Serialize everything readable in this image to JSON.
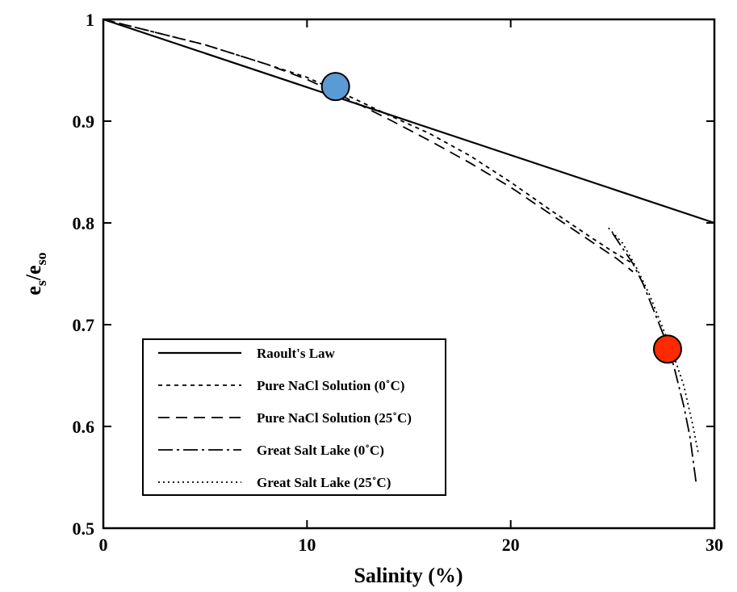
{
  "chart_data": {
    "type": "line",
    "title": "",
    "xlabel": "Salinity (%)",
    "ylabel": {
      "base": "e",
      "sub1": "s",
      "sep": "/e",
      "sub2": "so"
    },
    "xlim": [
      0,
      30
    ],
    "ylim": [
      0.5,
      1.0
    ],
    "xticks": [
      0,
      10,
      20,
      30
    ],
    "xtick_labels": [
      "0",
      "10",
      "20",
      "30"
    ],
    "yticks": [
      0.5,
      0.6,
      0.7,
      0.8,
      0.9,
      1.0
    ],
    "ytick_labels": [
      "0.5",
      "0.6",
      "0.7",
      "0.8",
      "0.9",
      "1"
    ],
    "grid": false,
    "legend_position": "bottom-left",
    "series": [
      {
        "name": "Raoult's Law",
        "dash": "solid",
        "points": [
          [
            0,
            1.0
          ],
          [
            30,
            0.8
          ]
        ]
      },
      {
        "name": "Pure NaCl Solution (0˚C)",
        "dash": "short-dash",
        "points": [
          [
            0,
            1.0
          ],
          [
            5,
            0.975
          ],
          [
            8,
            0.956
          ],
          [
            10,
            0.943
          ],
          [
            12,
            0.925
          ],
          [
            14,
            0.906
          ],
          [
            16,
            0.888
          ],
          [
            18,
            0.866
          ],
          [
            20,
            0.84
          ],
          [
            22,
            0.812
          ],
          [
            24,
            0.785
          ],
          [
            25,
            0.772
          ],
          [
            26,
            0.76
          ]
        ]
      },
      {
        "name": "Pure NaCl Solution (25˚C)",
        "dash": "long-dash",
        "points": [
          [
            0,
            1.0
          ],
          [
            5,
            0.975
          ],
          [
            8,
            0.956
          ],
          [
            10,
            0.941
          ],
          [
            12,
            0.922
          ],
          [
            14,
            0.902
          ],
          [
            16,
            0.881
          ],
          [
            18,
            0.859
          ],
          [
            20,
            0.835
          ],
          [
            22,
            0.808
          ],
          [
            24,
            0.781
          ],
          [
            25.2,
            0.765
          ],
          [
            26,
            0.752
          ]
        ]
      },
      {
        "name": "Great Salt Lake (0˚C)",
        "dash": "dash-dot",
        "points": [
          [
            25,
            0.79
          ],
          [
            25.5,
            0.775
          ],
          [
            26,
            0.76
          ],
          [
            26.5,
            0.74
          ],
          [
            27,
            0.715
          ],
          [
            27.5,
            0.69
          ],
          [
            28,
            0.66
          ],
          [
            28.5,
            0.62
          ],
          [
            28.8,
            0.59
          ],
          [
            29.1,
            0.545
          ]
        ]
      },
      {
        "name": "Great Salt Lake (25˚C)",
        "dash": "dotted",
        "points": [
          [
            24.8,
            0.795
          ],
          [
            25.5,
            0.78
          ],
          [
            26.2,
            0.755
          ],
          [
            26.8,
            0.73
          ],
          [
            27.4,
            0.7
          ],
          [
            28,
            0.67
          ],
          [
            28.5,
            0.64
          ],
          [
            28.9,
            0.605
          ],
          [
            29.2,
            0.575
          ]
        ]
      }
    ],
    "annotations": [
      {
        "type": "marker",
        "x": 11.4,
        "y": 0.934,
        "color": "#5b9bd5"
      },
      {
        "type": "marker",
        "x": 27.7,
        "y": 0.676,
        "color": "#ff2a00"
      }
    ]
  }
}
